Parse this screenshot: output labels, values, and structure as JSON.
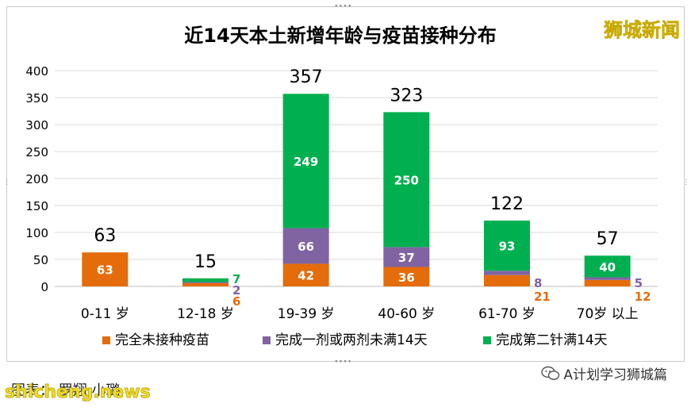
{
  "watermark": "狮城新闻",
  "footer": {
    "credit": "图表：   罗翔  小璐",
    "site": "shicheng.news",
    "source": "A计划学习狮城篇"
  },
  "colors": {
    "unvaccinated": "#e46c0a",
    "partial": "#8064a2",
    "full": "#00b050",
    "grid": "#d9d9d9",
    "text": "#000000"
  },
  "chart_data": {
    "type": "bar",
    "stacked": true,
    "title": "近14天本土新增年龄与疫苗接种分布",
    "categories": [
      "0-11 岁",
      "12-18 岁",
      "19-39 岁",
      "40-60 岁",
      "61-70 岁",
      "70岁 以上"
    ],
    "series": [
      {
        "name": "完全未接种疫苗",
        "color": "#e46c0a",
        "values": [
          63,
          6,
          42,
          36,
          21,
          12
        ]
      },
      {
        "name": "完成一剂或两剂未满14天",
        "color": "#8064a2",
        "values": [
          0,
          2,
          66,
          37,
          8,
          5
        ]
      },
      {
        "name": "完成第二针满14天",
        "color": "#00b050",
        "values": [
          0,
          7,
          249,
          250,
          93,
          40
        ]
      }
    ],
    "totals": [
      63,
      15,
      357,
      323,
      122,
      57
    ],
    "ylim": [
      0,
      400
    ],
    "yticks": [
      0,
      50,
      100,
      150,
      200,
      250,
      300,
      350,
      400
    ],
    "grid": true,
    "legend": "bottom"
  }
}
